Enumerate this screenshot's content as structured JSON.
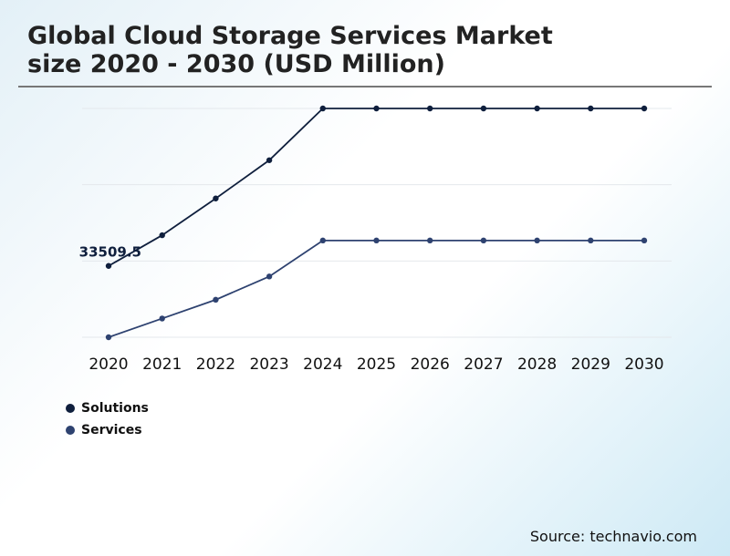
{
  "chart_data": {
    "type": "line",
    "title": "Global Cloud Storage Services Market\nsize 2020 - 2030 (USD Million)",
    "categories": [
      "2020",
      "2021",
      "2022",
      "2023",
      "2024",
      "2025",
      "2026",
      "2027",
      "2028",
      "2029",
      "2030"
    ],
    "series": [
      {
        "name": "Solutions",
        "color": "#0f1f3d",
        "values": [
          33509.5,
          37600,
          42500,
          47600,
          54500,
          54500,
          54500,
          54500,
          54500,
          54500,
          54500
        ]
      },
      {
        "name": "Services",
        "color": "#2e4270",
        "values": [
          24000,
          26500,
          29000,
          32100,
          36900,
          36900,
          36900,
          36900,
          36900,
          36900,
          36900
        ]
      }
    ],
    "data_labels": [
      {
        "series": 0,
        "index": 0,
        "text": "33509.5"
      }
    ],
    "ylim": [
      24000,
      54500
    ],
    "grid": true,
    "legend_position": "bottom-left",
    "xlabel": "",
    "ylabel": ""
  },
  "source": "Source: technavio.com",
  "colors": {
    "gridline": "#e4e8ec",
    "title_rule": "#777777"
  }
}
